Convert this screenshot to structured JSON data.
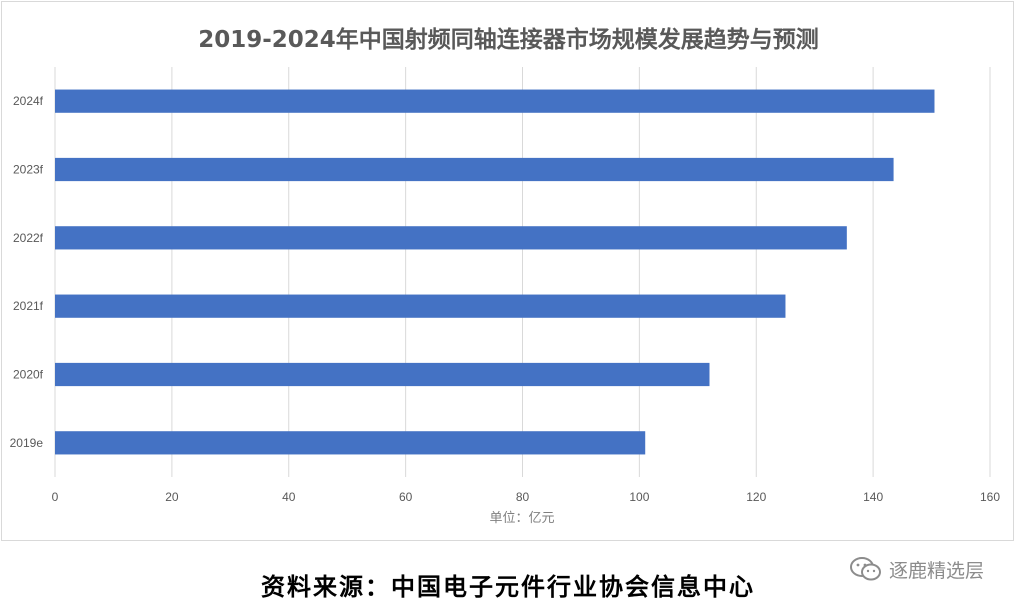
{
  "chart_data": {
    "type": "bar",
    "orientation": "horizontal",
    "title": "2019-2024年中国射频同轴连接器市场规模发展趋势与预测",
    "xlabel": "单位：亿元",
    "ylabel": "",
    "categories": [
      "2019e",
      "2020f",
      "2021f",
      "2022f",
      "2023f",
      "2024f"
    ],
    "values": [
      101,
      112,
      125,
      135.5,
      143.5,
      150.5
    ],
    "xlim": [
      0,
      160
    ],
    "xticks": [
      0,
      20,
      40,
      60,
      80,
      100,
      120,
      140,
      160
    ],
    "grid": true,
    "legend": "none",
    "bar_color": "#4472c4"
  },
  "source_note": "资料来源：中国电子元件行业协会信息中心",
  "watermark": {
    "text": "逐鹿精选层",
    "icon": "wechat-icon"
  },
  "colors": {
    "grid": "#d9d9d9",
    "text": "#595959"
  }
}
